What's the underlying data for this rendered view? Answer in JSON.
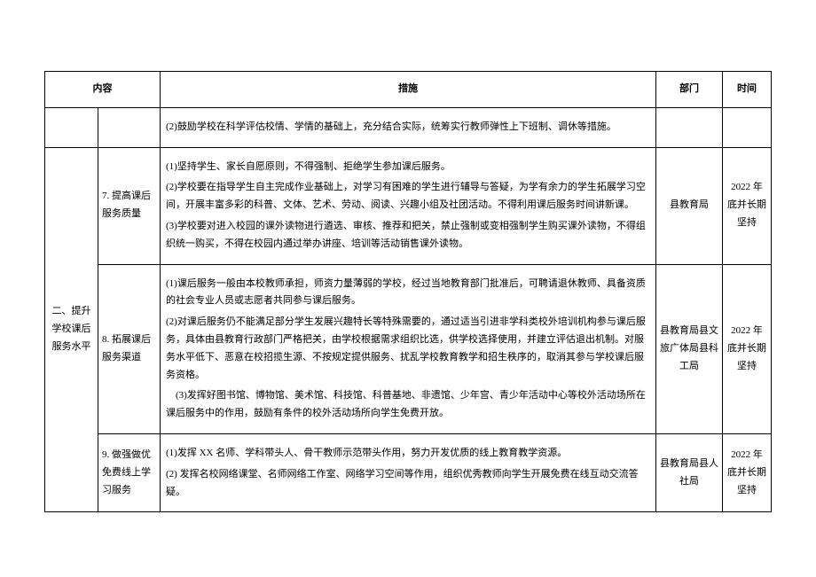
{
  "table": {
    "headers": {
      "category": "内容",
      "measure": "措施",
      "dept": "部门",
      "time": "时间"
    },
    "rows": [
      {
        "category": "",
        "item": "",
        "measure_p1": "(2)鼓励学校在科学评估校情、学情的基础上，充分结合实际，统筹实行教师弹性上下班制、调休等措施。",
        "dept": "",
        "time": ""
      },
      {
        "category": "二、提升学校课后服务水平",
        "item": "7. 提高课后服务质量",
        "measure_p1": "(1)坚持学生、家长自愿原则，不得强制、拒绝学生参加课后服务。",
        "measure_p2": "(2)学校要在指导学生自主完成作业基础上，对学习有困难的学生进行辅导与答疑，为学有余力的学生拓展学习空间，开展丰富多彩的科普、文体、艺术、劳动、阅读、兴趣小组及社团活动。不得利用课后服务时间讲新课。",
        "measure_p3": "(3)学校要对进入校园的课外读物进行遴选、审核、推荐和把关，禁止强制或变相强制学生购买课外读物，不得组织统一购买，不得在校园内通过举办讲座、培训等活动销售课外读物。",
        "dept": "县教育局",
        "time": "2022 年底并长期坚持"
      },
      {
        "item": "8. 拓展课后服务渠道",
        "measure_p1": "(1)课后服务一般由本校教师承担，师资力量薄弱的学校，经过当地教育部门批准后，可聘请退休教师、具备资质的社会专业人员或志愿者共同参与课后服务。",
        "measure_p2": "(2)对课后服务仍不能满足部分学生发展兴趣特长等特殊需要的，通过适当引进非学科类校外培训机构参与课后服务，具体由县教育行政部门严格把关，由学校根据需求组织比选，供学校选择使用，并建立评估退出机制。对服务水平低下、恶意在校招揽生源、不按规定提供服务、扰乱学校教育教学和招生秩序的，取消其参与学校课后服务资格。",
        "measure_p3": "　(3)发挥好图书馆、博物馆、美术馆、科技馆、科普基地、非遗馆、少年宫、青少年活动中心等校外活动场所在课后服务中的作用，鼓励有条件的校外活动场所向学生免费开放。",
        "dept": "县教育局县文旅广体局县科工局",
        "time": "2022 年底并长期坚持"
      },
      {
        "item": "9. 做强做优免费线上学习服务",
        "measure_p1": "(1)发挥 XX 名师、学科带头人、骨干教师示范带头作用，努力开发优质的线上教育教学资源。",
        "measure_p2": "(2) 发挥名校网络课堂、名师网络工作室、网络学习空间等作用，组织优秀教师向学生开展免费在线互动交流答疑。",
        "dept": "县教育局县人社局",
        "time": "2022 年底并长期坚持"
      }
    ],
    "colors": {
      "border": "#000000",
      "text": "#000000",
      "background": "#ffffff"
    },
    "font_size": 11
  }
}
